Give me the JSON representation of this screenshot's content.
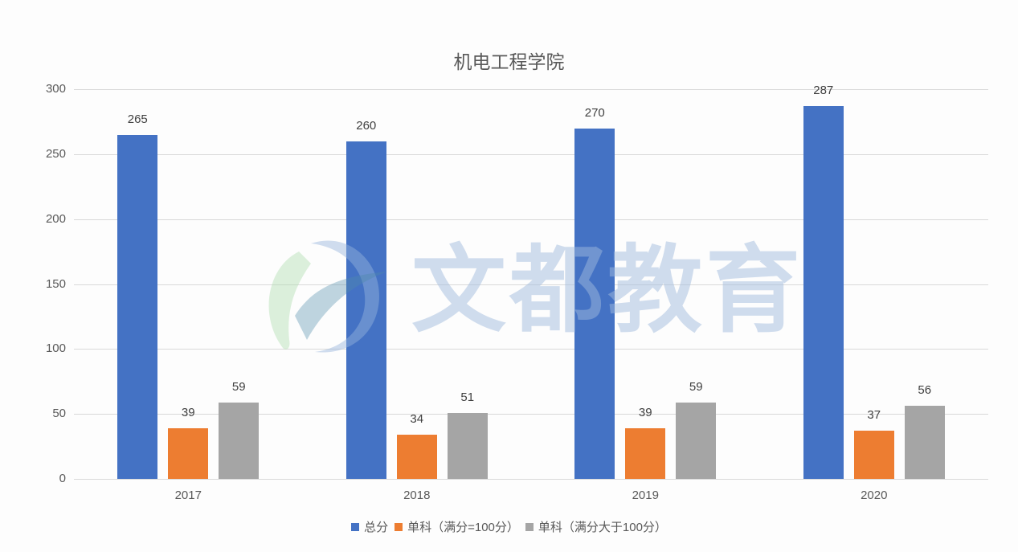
{
  "chart_data": {
    "type": "bar",
    "title": "机电工程学院",
    "categories": [
      "2017",
      "2018",
      "2019",
      "2020"
    ],
    "series": [
      {
        "name": "总分",
        "color": "#4472C4",
        "values": [
          265,
          260,
          270,
          287
        ]
      },
      {
        "name": "单科（满分=100分）",
        "color": "#ED7D31",
        "values": [
          39,
          34,
          39,
          37
        ]
      },
      {
        "name": "单科（满分大于100分）",
        "color": "#A5A5A5",
        "values": [
          59,
          51,
          59,
          56
        ]
      }
    ],
    "xlabel": "",
    "ylabel": "",
    "ylim": [
      0,
      300
    ],
    "yticks": [
      "0",
      "50",
      "100",
      "150",
      "200",
      "250",
      "300"
    ],
    "grid": true,
    "legend_position": "bottom",
    "data_labels": true
  },
  "watermark": {
    "text": "文都教育"
  }
}
